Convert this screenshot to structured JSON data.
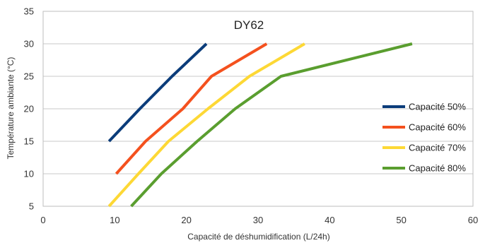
{
  "chart_data": {
    "type": "line",
    "title": "DY62",
    "xlabel": "Capacité de déshumidification (L/24h)",
    "ylabel": "Température ambiante (°C)",
    "xlim": [
      0,
      60
    ],
    "ylim": [
      5,
      35
    ],
    "xticks": [
      "0",
      "10",
      "20",
      "30",
      "40",
      "50",
      "60"
    ],
    "yticks": [
      "5",
      "10",
      "15",
      "20",
      "25",
      "30",
      "35"
    ],
    "grid": "horizontal",
    "legend": "right",
    "series": [
      {
        "name": "Capacité 50%",
        "color": "#0b3c7a",
        "points": [
          [
            9.2,
            15
          ],
          [
            13.5,
            20
          ],
          [
            18,
            25
          ],
          [
            22.8,
            30
          ]
        ]
      },
      {
        "name": "Capacité 60%",
        "color": "#f4511e",
        "points": [
          [
            10.2,
            10
          ],
          [
            14.3,
            15
          ],
          [
            19.5,
            20
          ],
          [
            23.5,
            25
          ],
          [
            31.2,
            30
          ]
        ]
      },
      {
        "name": "Capacité 70%",
        "color": "#fdd835",
        "points": [
          [
            9.2,
            5
          ],
          [
            13.3,
            10
          ],
          [
            17.5,
            15
          ],
          [
            23,
            20
          ],
          [
            28.8,
            25
          ],
          [
            36.5,
            30
          ]
        ]
      },
      {
        "name": "Capacité 80%",
        "color": "#5a9e2f",
        "points": [
          [
            12.3,
            5
          ],
          [
            16.5,
            10
          ],
          [
            21.5,
            15
          ],
          [
            26.8,
            20
          ],
          [
            33.2,
            25
          ],
          [
            51.5,
            30
          ]
        ]
      }
    ]
  }
}
